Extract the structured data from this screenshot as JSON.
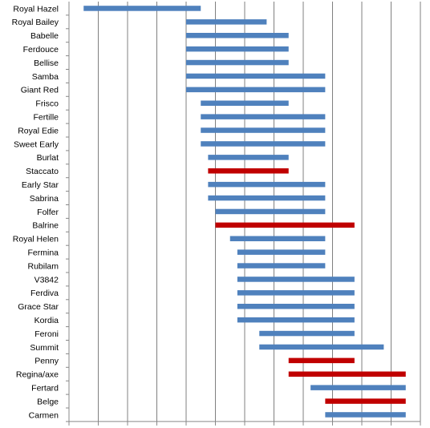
{
  "chart_data": {
    "type": "bar",
    "orientation": "horizontal-range",
    "title": "",
    "xlabel": "",
    "ylabel": "",
    "grid": true,
    "legend": "none",
    "colors": {
      "default": "#4f81bd",
      "highlight": "#c00000",
      "axis": "#888888",
      "grid": "#808080"
    },
    "x_ticks": [
      "29/2",
      "4/3",
      "8/3",
      "12/3",
      "16/3",
      "20/3",
      "24/3",
      "28/3",
      "1/4",
      "5/4",
      "9/4",
      "13/4",
      "17/4"
    ],
    "x_range_days": [
      0,
      48
    ],
    "categories": [
      "Royal Hazel",
      "Royal Bailey",
      "Babelle",
      "Ferdouce",
      "Bellise",
      "Samba",
      "Giant Red",
      "Frisco",
      "Fertille",
      "Royal Edie",
      "Sweet Early",
      "Burlat",
      "Staccato",
      "Early Star",
      "Sabrina",
      "Folfer",
      "Balrine",
      "Royal Helen",
      "Fermina",
      "Rubilam",
      "V3842",
      "Ferdiva",
      "Grace Star",
      "Kordia",
      "Feroni",
      "Summit",
      "Penny",
      "Regina/axe",
      "Fertard",
      "Belge",
      "Carmen"
    ],
    "ranges": [
      {
        "start": "2/3",
        "end": "18/3",
        "highlight": false
      },
      {
        "start": "16/3",
        "end": "27/3",
        "highlight": false
      },
      {
        "start": "16/3",
        "end": "30/3",
        "highlight": false
      },
      {
        "start": "16/3",
        "end": "30/3",
        "highlight": false
      },
      {
        "start": "16/3",
        "end": "30/3",
        "highlight": false
      },
      {
        "start": "16/3",
        "end": "4/4",
        "highlight": false
      },
      {
        "start": "16/3",
        "end": "4/4",
        "highlight": false
      },
      {
        "start": "18/3",
        "end": "30/3",
        "highlight": false
      },
      {
        "start": "18/3",
        "end": "4/4",
        "highlight": false
      },
      {
        "start": "18/3",
        "end": "4/4",
        "highlight": false
      },
      {
        "start": "18/3",
        "end": "4/4",
        "highlight": false
      },
      {
        "start": "19/3",
        "end": "30/3",
        "highlight": false
      },
      {
        "start": "19/3",
        "end": "30/3",
        "highlight": true
      },
      {
        "start": "19/3",
        "end": "4/4",
        "highlight": false
      },
      {
        "start": "19/3",
        "end": "4/4",
        "highlight": false
      },
      {
        "start": "20/3",
        "end": "4/4",
        "highlight": false
      },
      {
        "start": "20/3",
        "end": "8/4",
        "highlight": true
      },
      {
        "start": "22/3",
        "end": "4/4",
        "highlight": false
      },
      {
        "start": "23/3",
        "end": "4/4",
        "highlight": false
      },
      {
        "start": "23/3",
        "end": "4/4",
        "highlight": false
      },
      {
        "start": "23/3",
        "end": "8/4",
        "highlight": false
      },
      {
        "start": "23/3",
        "end": "8/4",
        "highlight": false
      },
      {
        "start": "23/3",
        "end": "8/4",
        "highlight": false
      },
      {
        "start": "23/3",
        "end": "8/4",
        "highlight": false
      },
      {
        "start": "26/3",
        "end": "8/4",
        "highlight": false
      },
      {
        "start": "26/3",
        "end": "12/4",
        "highlight": false
      },
      {
        "start": "30/3",
        "end": "8/4",
        "highlight": true
      },
      {
        "start": "30/3",
        "end": "15/4",
        "highlight": true
      },
      {
        "start": "2/4",
        "end": "15/4",
        "highlight": false
      },
      {
        "start": "4/4",
        "end": "15/4",
        "highlight": true
      },
      {
        "start": "4/4",
        "end": "15/4",
        "highlight": false
      }
    ]
  }
}
